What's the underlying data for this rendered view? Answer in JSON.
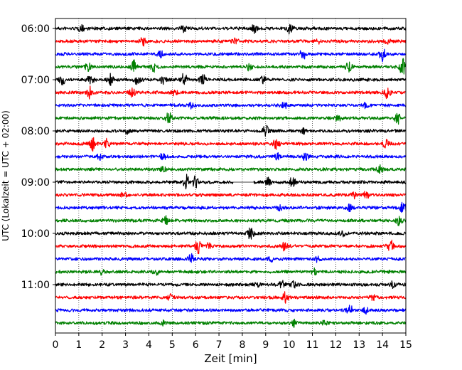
{
  "chart_data": {
    "type": "line",
    "title": "",
    "xlabel": "Zeit  [min]",
    "ylabel": "UTC (Lokalzeit = UTC + 02:00)",
    "xlim": [
      0,
      15
    ],
    "x_ticks": [
      "0",
      "1",
      "2",
      "3",
      "4",
      "5",
      "6",
      "7",
      "8",
      "9",
      "10",
      "11",
      "12",
      "13",
      "14",
      "15"
    ],
    "y_ticks": [
      "06:00",
      "07:00",
      "08:00",
      "09:00",
      "10:00",
      "11:00"
    ],
    "grid": "vertical dotted at each minute",
    "traces": [
      {
        "start": "06:00",
        "color": "#000000",
        "events": [
          [
            1.1,
            0.6
          ],
          [
            5.5,
            0.5
          ],
          [
            8.5,
            0.8
          ],
          [
            10.05,
            1.0
          ]
        ]
      },
      {
        "start": "06:15",
        "color": "#ff0000",
        "events": [
          [
            3.75,
            1.2
          ],
          [
            7.7,
            0.5
          ],
          [
            11.3,
            0.4
          ],
          [
            14.2,
            0.5
          ]
        ]
      },
      {
        "start": "06:30",
        "color": "#0000ff",
        "events": [
          [
            4.5,
            0.6
          ],
          [
            10.6,
            1.0
          ],
          [
            14.0,
            1.3
          ]
        ]
      },
      {
        "start": "06:45",
        "color": "#008000",
        "events": [
          [
            1.4,
            0.7
          ],
          [
            3.35,
            1.4
          ],
          [
            4.2,
            0.9
          ],
          [
            8.3,
            0.8
          ],
          [
            12.55,
            1.1
          ],
          [
            14.85,
            1.6
          ]
        ]
      },
      {
        "start": "07:00",
        "color": "#000000",
        "events": [
          [
            0.3,
            1.0
          ],
          [
            1.5,
            0.8
          ],
          [
            2.35,
            1.0
          ],
          [
            3.5,
            0.9
          ],
          [
            4.6,
            0.8
          ],
          [
            5.5,
            1.3
          ],
          [
            6.3,
            1.0
          ],
          [
            8.9,
            0.6
          ]
        ]
      },
      {
        "start": "07:15",
        "color": "#ff0000",
        "events": [
          [
            1.45,
            1.2
          ],
          [
            3.3,
            0.8
          ],
          [
            5.1,
            0.6
          ],
          [
            14.2,
            1.1
          ]
        ]
      },
      {
        "start": "07:30",
        "color": "#0000ff",
        "events": [
          [
            5.8,
            0.5
          ],
          [
            9.8,
            0.6
          ],
          [
            13.3,
            0.5
          ]
        ]
      },
      {
        "start": "07:45",
        "color": "#008000",
        "events": [
          [
            4.85,
            1.1
          ],
          [
            12.1,
            0.5
          ],
          [
            14.65,
            1.0
          ]
        ]
      },
      {
        "start": "08:00",
        "color": "#000000",
        "events": [
          [
            3.05,
            0.5
          ],
          [
            9.0,
            1.1
          ],
          [
            10.6,
            0.6
          ]
        ]
      },
      {
        "start": "08:15",
        "color": "#ff0000",
        "events": [
          [
            1.6,
            1.3
          ],
          [
            2.2,
            0.9
          ],
          [
            9.45,
            1.1
          ],
          [
            14.15,
            0.9
          ]
        ]
      },
      {
        "start": "08:30",
        "color": "#0000ff",
        "events": [
          [
            1.9,
            0.6
          ],
          [
            4.6,
            0.6
          ],
          [
            9.5,
            0.6
          ],
          [
            10.7,
            0.7
          ]
        ]
      },
      {
        "start": "08:45",
        "color": "#008000",
        "events": [
          [
            4.6,
            0.5
          ],
          [
            13.9,
            0.7
          ]
        ]
      },
      {
        "start": "09:00",
        "color": "#000000",
        "events": [
          [
            5.6,
            1.4
          ],
          [
            6.0,
            1.2
          ],
          [
            9.1,
            0.7
          ],
          [
            10.15,
            1.0
          ]
        ],
        "gap": [
          7.6,
          8.5
        ]
      },
      {
        "start": "09:15",
        "color": "#ff0000",
        "events": [
          [
            2.9,
            0.6
          ],
          [
            12.8,
            0.5
          ],
          [
            13.3,
            0.6
          ]
        ]
      },
      {
        "start": "09:30",
        "color": "#0000ff",
        "events": [
          [
            9.6,
            0.5
          ],
          [
            12.6,
            0.6
          ],
          [
            14.9,
            1.3
          ]
        ]
      },
      {
        "start": "09:45",
        "color": "#008000",
        "events": [
          [
            4.7,
            0.9
          ],
          [
            14.7,
            0.8
          ]
        ]
      },
      {
        "start": "10:00",
        "color": "#000000",
        "events": [
          [
            8.35,
            1.1
          ],
          [
            12.3,
            0.5
          ]
        ]
      },
      {
        "start": "10:15",
        "color": "#ff0000",
        "events": [
          [
            6.1,
            1.3
          ],
          [
            6.6,
            0.9
          ],
          [
            9.8,
            0.7
          ],
          [
            14.35,
            1.2
          ]
        ]
      },
      {
        "start": "10:30",
        "color": "#0000ff",
        "events": [
          [
            5.8,
            1.0
          ],
          [
            9.2,
            0.6
          ],
          [
            11.2,
            0.5
          ]
        ]
      },
      {
        "start": "10:45",
        "color": "#008000",
        "events": [
          [
            2.0,
            0.5
          ],
          [
            4.3,
            0.7
          ],
          [
            11.1,
            0.5
          ]
        ]
      },
      {
        "start": "11:00",
        "color": "#000000",
        "events": [
          [
            8.6,
            0.6
          ],
          [
            9.7,
            0.6
          ],
          [
            10.2,
            0.5
          ],
          [
            14.4,
            0.7
          ]
        ]
      },
      {
        "start": "11:15",
        "color": "#ff0000",
        "events": [
          [
            4.9,
            0.6
          ],
          [
            9.85,
            1.1
          ],
          [
            13.6,
            0.5
          ]
        ]
      },
      {
        "start": "11:30",
        "color": "#0000ff",
        "events": [
          [
            12.6,
            0.9
          ],
          [
            13.3,
            0.5
          ]
        ]
      },
      {
        "start": "11:45",
        "color": "#008000",
        "events": [
          [
            4.6,
            0.5
          ],
          [
            10.2,
            0.6
          ],
          [
            11.5,
            0.4
          ]
        ]
      }
    ]
  }
}
